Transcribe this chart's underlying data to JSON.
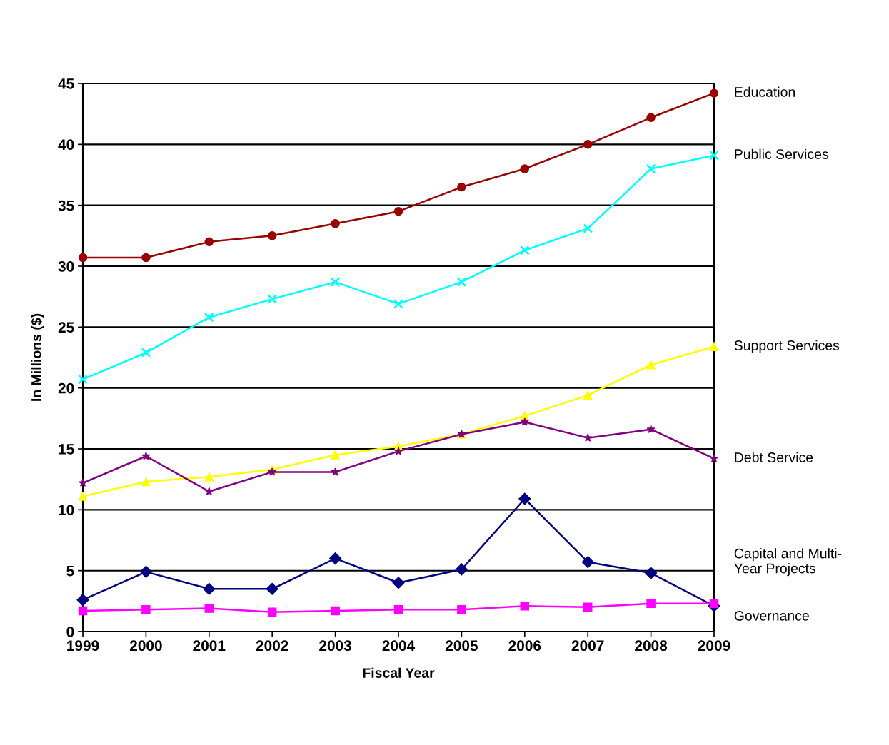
{
  "chart_data": {
    "type": "line",
    "xlabel": "Fiscal Year",
    "ylabel": "In Millions ($)",
    "x": [
      "1999",
      "2000",
      "2001",
      "2002",
      "2003",
      "2004",
      "2005",
      "2006",
      "2007",
      "2008",
      "2009"
    ],
    "xlim": [
      "1999",
      "2009"
    ],
    "xticks": [
      "1999",
      "2000",
      "2001",
      "2002",
      "2003",
      "2004",
      "2005",
      "2006",
      "2007",
      "2008",
      "2009"
    ],
    "ylim": [
      0,
      45
    ],
    "yticks": [
      0,
      5,
      10,
      15,
      20,
      25,
      30,
      35,
      40,
      45
    ],
    "grid": "y",
    "legend": false,
    "line_style": "solid",
    "series": [
      {
        "name": "Education",
        "color": "#990000",
        "marker": "circle",
        "values": [
          30.7,
          30.7,
          32.0,
          32.5,
          33.5,
          34.5,
          36.5,
          38.0,
          40.0,
          42.2,
          44.2
        ]
      },
      {
        "name": "Public Services",
        "color": "#00ffff",
        "marker": "cross",
        "values": [
          20.7,
          22.9,
          25.8,
          27.3,
          28.7,
          26.9,
          28.7,
          31.3,
          33.1,
          38.0,
          39.1
        ]
      },
      {
        "name": "Support Services",
        "color": "#ffff00",
        "marker": "triangle",
        "values": [
          11.1,
          12.3,
          12.7,
          13.3,
          14.5,
          15.2,
          16.2,
          17.7,
          19.4,
          21.9,
          23.4
        ]
      },
      {
        "name": "Debt Service",
        "color": "#800080",
        "marker": "star",
        "values": [
          12.2,
          14.4,
          11.5,
          13.1,
          13.1,
          14.8,
          16.2,
          17.2,
          15.9,
          16.6,
          14.2
        ]
      },
      {
        "name": "Capital and Multi-\nYear Projects",
        "color": "#000080",
        "marker": "diamond",
        "values": [
          2.6,
          4.9,
          3.5,
          3.5,
          6.0,
          4.0,
          5.1,
          10.9,
          5.7,
          4.8,
          2.1
        ]
      },
      {
        "name": "Governance",
        "color": "#ff00ff",
        "marker": "square",
        "values": [
          1.7,
          1.8,
          1.9,
          1.6,
          1.7,
          1.8,
          1.8,
          2.1,
          2.0,
          2.3,
          2.3
        ]
      }
    ]
  }
}
